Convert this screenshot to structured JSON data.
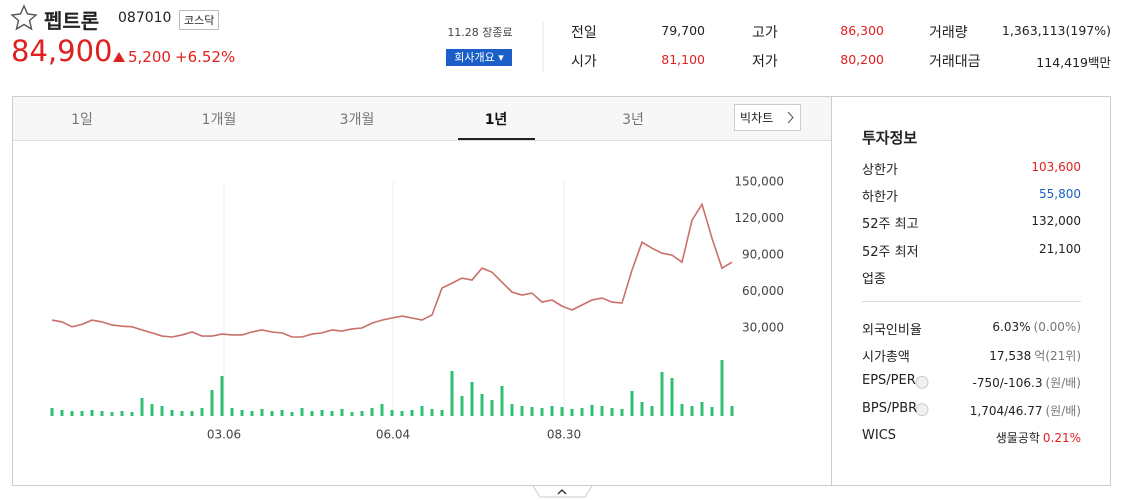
{
  "header": {
    "name": "펩트론",
    "code": "087010",
    "market": "코스닥",
    "price": "84,900",
    "change": "5,200",
    "change_rate": "+6.52%",
    "status": "11.28 장종료",
    "company_button": "회사개요"
  },
  "quote": [
    {
      "label": "전일",
      "value": "79,700",
      "color": "#222"
    },
    {
      "label": "고가",
      "value": "86,300",
      "color": "#e0201f"
    },
    {
      "label": "거래량",
      "value": "1,363,113(197%)",
      "color": "#222"
    },
    {
      "label": "시가",
      "value": "81,100",
      "color": "#e0201f"
    },
    {
      "label": "저가",
      "value": "80,200",
      "color": "#e0201f"
    },
    {
      "label": "거래대금",
      "value": "114,419백만",
      "color": "#222"
    }
  ],
  "tabs": [
    "1일",
    "1개월",
    "3개월",
    "1년",
    "3년"
  ],
  "active_tab": 3,
  "big_chart": "빅차트",
  "chart": {
    "type": "line",
    "color": "#c8706a",
    "volume_color": "#2fbf71",
    "xlim": [
      0,
      68
    ],
    "xticks": [
      {
        "value": 17.2,
        "label": "03.06"
      },
      {
        "value": 34.1,
        "label": "06.04"
      },
      {
        "value": 51.2,
        "label": "08.30"
      }
    ],
    "ylim": [
      30000,
      150000
    ],
    "yticks": [
      {
        "value": 30000,
        "label": "30,000"
      },
      {
        "value": 60000,
        "label": "60,000"
      },
      {
        "value": 90000,
        "label": "90,000"
      },
      {
        "value": 120000,
        "label": "120,000"
      },
      {
        "value": 150000,
        "label": "150,000"
      }
    ],
    "values": [
      36500,
      35000,
      31000,
      33000,
      36500,
      35000,
      32500,
      31500,
      31000,
      28400,
      26000,
      23400,
      22600,
      24300,
      26700,
      23400,
      23400,
      25000,
      24300,
      24300,
      26700,
      28400,
      26700,
      26000,
      22600,
      22600,
      25000,
      26000,
      28400,
      27500,
      29200,
      30000,
      34000,
      36500,
      38200,
      39800,
      38200,
      36500,
      40700,
      62800,
      66900,
      71000,
      69400,
      79200,
      75900,
      67700,
      59500,
      57100,
      58700,
      51300,
      53000,
      48000,
      44800,
      48900,
      53000,
      54600,
      51300,
      50500,
      77600,
      100500,
      95600,
      91500,
      89900,
      84100,
      118600,
      131700,
      103800,
      79200,
      84100
    ],
    "volume": [
      1088000,
      816000,
      680000,
      680000,
      816000,
      680000,
      544000,
      680000,
      544000,
      2448000,
      1632000,
      1360000,
      816000,
      680000,
      680000,
      1088000,
      3536000,
      5440000,
      1088000,
      816000,
      680000,
      952000,
      680000,
      816000,
      544000,
      1088000,
      680000,
      816000,
      680000,
      952000,
      544000,
      680000,
      1088000,
      1632000,
      816000,
      680000,
      816000,
      1360000,
      952000,
      816000,
      6120000,
      2720000,
      4624000,
      2992000,
      2176000,
      4080000,
      1632000,
      1360000,
      1224000,
      1088000,
      1360000,
      1224000,
      952000,
      1088000,
      1496000,
      1360000,
      1088000,
      952000,
      3400000,
      1904000,
      1360000,
      5984000,
      5168000,
      1632000,
      1360000,
      1904000,
      1224000,
      7616000,
      1360000
    ]
  },
  "invest": {
    "title": "투자정보",
    "rows": [
      {
        "label": "상한가",
        "value": "103,600",
        "color": "#e0201f"
      },
      {
        "label": "하한가",
        "value": "55,800",
        "color": "#1a5fc7"
      },
      {
        "label": "52주 최고",
        "value": "132,000",
        "color": "#222"
      },
      {
        "label": "52주 최저",
        "value": "21,100",
        "color": "#222"
      },
      {
        "label": "업종",
        "value": null,
        "color": "#222"
      }
    ],
    "rows2": [
      {
        "label": "외국인비율",
        "value": "6.03%",
        "sub": "(0.00%)",
        "help": false
      },
      {
        "label": "시가총액",
        "value": "17,538",
        "sub": "억(21위)",
        "help": false
      },
      {
        "label": "EPS/PER",
        "value": "-750/-106.3",
        "sub": "(원/배)",
        "help": true
      },
      {
        "label": "BPS/PBR",
        "value": "1,704/46.77",
        "sub": "(원/배)",
        "help": true
      },
      {
        "label": "WICS",
        "value": "생물공학",
        "sub": "0.21%",
        "help": false
      }
    ]
  }
}
